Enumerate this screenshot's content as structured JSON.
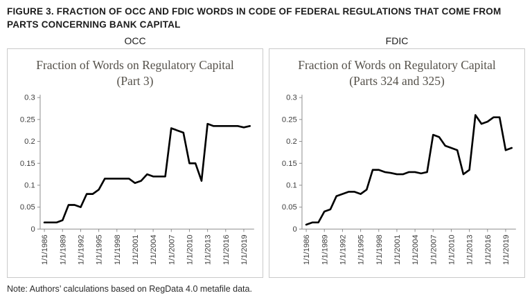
{
  "figure": {
    "title": "FIGURE 3. FRACTION OF OCC AND FDIC WORDS IN CODE OF FEDERAL REGULATIONS THAT COME FROM PARTS CONCERNING BANK CAPITAL",
    "note": "Note: Authors’ calculations based on RegData 4.0 metafile data."
  },
  "colors": {
    "line": "#000000",
    "axis": "#8f8f8f",
    "panel_border": "#c9c9c9",
    "chart_title_text": "#55514a"
  },
  "chart_data": [
    {
      "type": "line",
      "panel_label": "OCC",
      "title": "Fraction of Words on Regulatory Capital (Part 3)",
      "legend": "none",
      "grid": false,
      "ylim": [
        0,
        0.3
      ],
      "x": [
        1986,
        1987,
        1988,
        1989,
        1990,
        1991,
        1992,
        1993,
        1994,
        1995,
        1996,
        1997,
        1998,
        1999,
        2000,
        2001,
        2002,
        2003,
        2004,
        2005,
        2006,
        2007,
        2008,
        2009,
        2010,
        2011,
        2012,
        2013,
        2014,
        2015,
        2016,
        2017,
        2018,
        2019,
        2020
      ],
      "values": [
        0.015,
        0.015,
        0.015,
        0.02,
        0.055,
        0.055,
        0.05,
        0.08,
        0.08,
        0.09,
        0.115,
        0.115,
        0.115,
        0.115,
        0.115,
        0.105,
        0.11,
        0.125,
        0.12,
        0.12,
        0.12,
        0.23,
        0.225,
        0.22,
        0.15,
        0.15,
        0.11,
        0.24,
        0.235,
        0.235,
        0.235,
        0.235,
        0.235,
        0.232,
        0.235
      ],
      "yticks": [
        {
          "v": 0,
          "label": "0"
        },
        {
          "v": 0.05,
          "label": "0.05"
        },
        {
          "v": 0.1,
          "label": "0.1"
        },
        {
          "v": 0.15,
          "label": "0.15"
        },
        {
          "v": 0.2,
          "label": "0.2"
        },
        {
          "v": 0.25,
          "label": "0.25"
        },
        {
          "v": 0.3,
          "label": "0.3"
        }
      ],
      "xticks": [
        {
          "i": 0,
          "label": "1/1/1986"
        },
        {
          "i": 3,
          "label": "1/1/1989"
        },
        {
          "i": 6,
          "label": "1/1/1992"
        },
        {
          "i": 9,
          "label": "1/1/1995"
        },
        {
          "i": 12,
          "label": "1/1/1998"
        },
        {
          "i": 15,
          "label": "1/1/2001"
        },
        {
          "i": 18,
          "label": "1/1/2004"
        },
        {
          "i": 21,
          "label": "1/1/2007"
        },
        {
          "i": 24,
          "label": "1/1/2010"
        },
        {
          "i": 27,
          "label": "1/1/2013"
        },
        {
          "i": 30,
          "label": "1/1/2016"
        },
        {
          "i": 33,
          "label": "1/1/2019"
        }
      ]
    },
    {
      "type": "line",
      "panel_label": "FDIC",
      "title": "Fraction of Words on Regulatory Capital (Parts 324 and 325)",
      "legend": "none",
      "grid": false,
      "ylim": [
        0,
        0.3
      ],
      "x": [
        1986,
        1987,
        1988,
        1989,
        1990,
        1991,
        1992,
        1993,
        1994,
        1995,
        1996,
        1997,
        1998,
        1999,
        2000,
        2001,
        2002,
        2003,
        2004,
        2005,
        2006,
        2007,
        2008,
        2009,
        2010,
        2011,
        2012,
        2013,
        2014,
        2015,
        2016,
        2017,
        2018,
        2019,
        2020
      ],
      "values": [
        0.01,
        0.015,
        0.015,
        0.04,
        0.045,
        0.075,
        0.08,
        0.085,
        0.085,
        0.08,
        0.09,
        0.135,
        0.135,
        0.13,
        0.128,
        0.125,
        0.125,
        0.13,
        0.13,
        0.127,
        0.13,
        0.215,
        0.21,
        0.19,
        0.185,
        0.18,
        0.125,
        0.135,
        0.26,
        0.24,
        0.245,
        0.255,
        0.255,
        0.18,
        0.185
      ],
      "yticks": [
        {
          "v": 0,
          "label": "0"
        },
        {
          "v": 0.05,
          "label": "0.05"
        },
        {
          "v": 0.1,
          "label": "0.1"
        },
        {
          "v": 0.15,
          "label": "0.15"
        },
        {
          "v": 0.2,
          "label": "0.2"
        },
        {
          "v": 0.25,
          "label": "0.25"
        },
        {
          "v": 0.3,
          "label": "0.3"
        }
      ],
      "xticks": [
        {
          "i": 0,
          "label": "1/1/1986"
        },
        {
          "i": 3,
          "label": "1/1/1989"
        },
        {
          "i": 6,
          "label": "1/1/1992"
        },
        {
          "i": 9,
          "label": "1/1/1995"
        },
        {
          "i": 12,
          "label": "1/1/1998"
        },
        {
          "i": 15,
          "label": "1/1/2001"
        },
        {
          "i": 18,
          "label": "1/1/2004"
        },
        {
          "i": 21,
          "label": "1/1/2007"
        },
        {
          "i": 24,
          "label": "1/1/2010"
        },
        {
          "i": 27,
          "label": "1/1/2013"
        },
        {
          "i": 30,
          "label": "1/1/2016"
        },
        {
          "i": 33,
          "label": "1/1/2019"
        }
      ]
    }
  ]
}
